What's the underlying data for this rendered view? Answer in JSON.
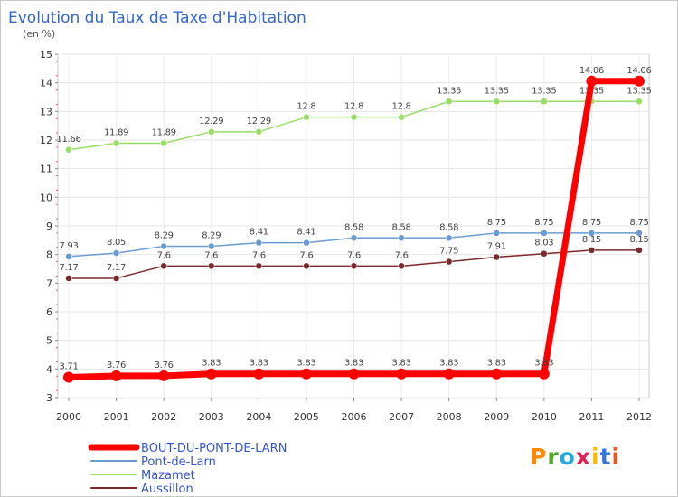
{
  "chart_data": {
    "type": "line",
    "title": "Evolution du Taux de Taxe d'Habitation",
    "ylabel": "(en %)",
    "xlabel": "",
    "categories": [
      "2000",
      "2001",
      "2002",
      "2003",
      "2004",
      "2005",
      "2006",
      "2007",
      "2008",
      "2009",
      "2010",
      "2011",
      "2012"
    ],
    "ylim": [
      3,
      15
    ],
    "yticks": [
      "3",
      "4",
      "5",
      "6",
      "7",
      "8",
      "9",
      "10",
      "11",
      "12",
      "13",
      "14",
      "15"
    ],
    "grid": true,
    "legend_position": "bottom-left",
    "series": [
      {
        "name": "BOUT-DU-PONT-DE-LARN",
        "color": "#ff0000",
        "emphasis": true,
        "values": [
          3.71,
          3.76,
          3.76,
          3.83,
          3.83,
          3.83,
          3.83,
          3.83,
          3.83,
          3.83,
          3.83,
          14.06,
          14.06
        ],
        "labels": [
          "3.71",
          "3.76",
          "3.76",
          "3.83",
          "3.83",
          "3.83",
          "3.83",
          "3.83",
          "3.83",
          "3.83",
          "3.83",
          "14.06",
          "14.06"
        ]
      },
      {
        "name": "Pont-de-Larn",
        "color": "#6a9ccf",
        "values": [
          7.93,
          8.05,
          8.29,
          8.29,
          8.41,
          8.41,
          8.58,
          8.58,
          8.58,
          8.75,
          8.75,
          8.75,
          8.75
        ],
        "labels": [
          "7.93",
          "8.05",
          "8.29",
          "8.29",
          "8.41",
          "8.41",
          "8.58",
          "8.58",
          "8.58",
          "8.75",
          "8.75",
          "8.75",
          "8.75"
        ]
      },
      {
        "name": "Mazamet",
        "color": "#99dd66",
        "values": [
          11.66,
          11.89,
          11.89,
          12.29,
          12.29,
          12.8,
          12.8,
          12.8,
          13.35,
          13.35,
          13.35,
          13.35,
          13.35
        ],
        "labels": [
          "11.66",
          "11.89",
          "11.89",
          "12.29",
          "12.29",
          "12.8",
          "12.8",
          "12.8",
          "13.35",
          "13.35",
          "13.35",
          "13.35",
          "13.35"
        ]
      },
      {
        "name": "Aussillon",
        "color": "#7a2a2a",
        "values": [
          7.17,
          7.17,
          7.6,
          7.6,
          7.6,
          7.6,
          7.6,
          7.6,
          7.75,
          7.91,
          8.03,
          8.15,
          8.15
        ],
        "labels": [
          "7.17",
          "7.17",
          "7.6",
          "7.6",
          "7.6",
          "7.6",
          "7.6",
          "7.6",
          "7.75",
          "7.91",
          "8.03",
          "8.15",
          "8.15"
        ]
      }
    ]
  },
  "watermark": {
    "text": "Proxiti"
  }
}
